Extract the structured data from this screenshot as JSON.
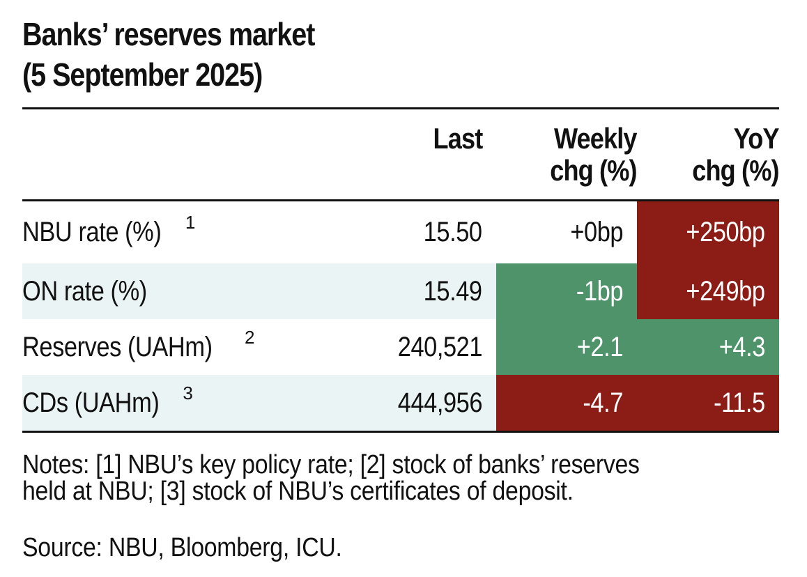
{
  "chart_data": {
    "type": "table",
    "title_lines": [
      "Banks’ reserves market",
      "(5 September 2025)"
    ],
    "columns": [
      {
        "key": "label",
        "header": ""
      },
      {
        "key": "last",
        "header": "Last"
      },
      {
        "key": "weekly",
        "header": "Weekly\nchg (%)",
        "header_lines": [
          "Weekly",
          "chg (%)"
        ]
      },
      {
        "key": "yoy",
        "header": "YoY\nchg (%)",
        "header_lines": [
          "YoY",
          "chg (%)"
        ]
      }
    ],
    "rows": [
      {
        "label": "NBU rate (%)",
        "footnote": "1",
        "last": "15.50",
        "weekly": "+0bp",
        "weekly_status": "neutral",
        "yoy": "+250bp",
        "yoy_status": "negative"
      },
      {
        "label": "ON rate (%)",
        "footnote": "",
        "last": "15.49",
        "weekly": "-1bp",
        "weekly_status": "positive",
        "yoy": "+249bp",
        "yoy_status": "negative"
      },
      {
        "label": "Reserves (UAHm)",
        "footnote": "2",
        "last": "240,521",
        "weekly": "+2.1",
        "weekly_status": "positive",
        "yoy": "+4.3",
        "yoy_status": "positive"
      },
      {
        "label": "CDs (UAHm)",
        "footnote": "3",
        "last": "444,956",
        "weekly": "-4.7",
        "weekly_status": "negative",
        "yoy": "-11.5",
        "yoy_status": "negative"
      }
    ],
    "notes_lines": [
      "Notes: [1] NBU’s key policy rate; [2] stock of banks’ reserves",
      "held at NBU; [3] stock of NBU’s certificates of deposit."
    ],
    "source": "Source: NBU, Bloomberg, ICU."
  },
  "colors": {
    "positive": "#4e936a",
    "negative": "#8c1c16",
    "row_shade": "#eaf4f4",
    "text": "#111111"
  }
}
